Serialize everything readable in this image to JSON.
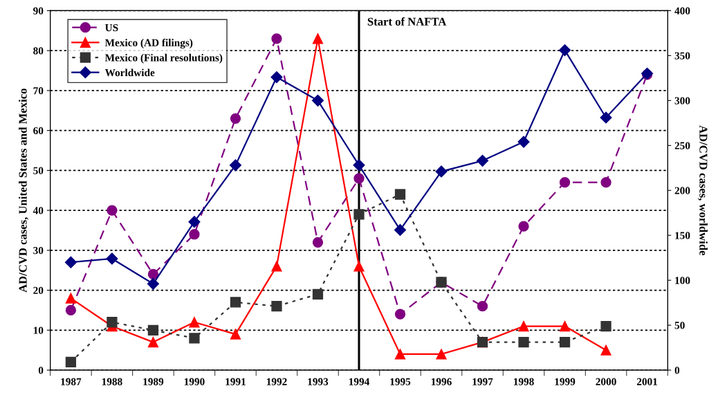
{
  "chart_data": {
    "type": "line",
    "categories": [
      "1987",
      "1988",
      "1989",
      "1990",
      "1991",
      "1992",
      "1993",
      "1994",
      "1995",
      "1996",
      "1997",
      "1998",
      "1999",
      "2000",
      "2001"
    ],
    "series": [
      {
        "name": "US",
        "color": "#800080",
        "line_style": "dashed",
        "marker": "circle",
        "values": [
          15,
          40,
          24,
          34,
          63,
          83,
          32,
          48,
          14,
          22,
          16,
          36,
          47,
          47,
          74
        ]
      },
      {
        "name": "Mexico (AD filings)",
        "color": "#ff0000",
        "line_style": "solid",
        "marker": "triangle",
        "values": [
          18,
          11,
          7,
          12,
          9,
          26,
          83,
          26,
          4,
          4,
          7,
          11,
          11,
          5,
          null
        ]
      },
      {
        "name": "Mexico (Final resolutions)",
        "color": "#333333",
        "line_style": "dotted",
        "marker": "square",
        "values": [
          2,
          12,
          10,
          8,
          17,
          16,
          19,
          39,
          44,
          22,
          7,
          7,
          7,
          11,
          null
        ]
      },
      {
        "name": "Worldwide",
        "color": "#000080",
        "line_style": "solid",
        "marker": "diamond",
        "axis": "y2",
        "values": [
          120,
          124,
          96,
          165,
          228,
          326,
          300,
          228,
          156,
          221,
          233,
          254,
          356,
          281,
          330
        ]
      }
    ],
    "ylabel": "AD/CVD cases, United States and Mexico",
    "y2label": "AD/CVD cases, worldwide",
    "ylim": [
      0,
      90
    ],
    "yticks": [
      0,
      10,
      20,
      30,
      40,
      50,
      60,
      70,
      80,
      90
    ],
    "y2lim": [
      0,
      400
    ],
    "y2ticks": [
      0,
      50,
      100,
      150,
      200,
      250,
      300,
      350,
      400
    ],
    "ref_lines": [
      {
        "axis": "x",
        "value": "1994",
        "label": "Start of NAFTA",
        "color": "#000000"
      }
    ],
    "grid": "y",
    "legend": "top left"
  }
}
